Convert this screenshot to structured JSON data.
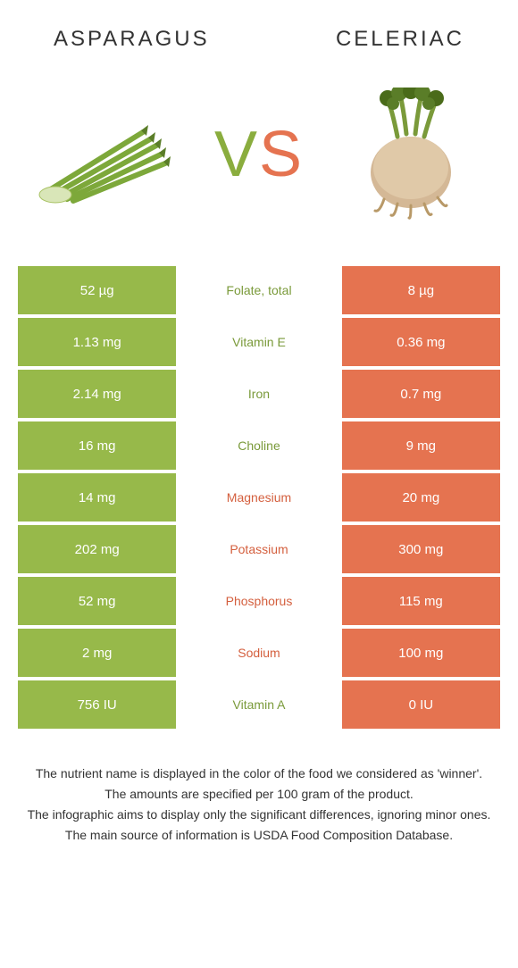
{
  "colors": {
    "left": "#97b94a",
    "right": "#e57350",
    "left_text": "#7a9a3a",
    "right_text": "#d45f3e",
    "white": "#ffffff"
  },
  "foods": {
    "left_name": "Asparagus",
    "right_name": "Celeriac"
  },
  "vs": {
    "v": "V",
    "s": "S"
  },
  "rows": [
    {
      "left": "52 µg",
      "label": "Folate, total",
      "right": "8 µg",
      "winner": "left"
    },
    {
      "left": "1.13 mg",
      "label": "Vitamin E",
      "right": "0.36 mg",
      "winner": "left"
    },
    {
      "left": "2.14 mg",
      "label": "Iron",
      "right": "0.7 mg",
      "winner": "left"
    },
    {
      "left": "16 mg",
      "label": "Choline",
      "right": "9 mg",
      "winner": "left"
    },
    {
      "left": "14 mg",
      "label": "Magnesium",
      "right": "20 mg",
      "winner": "right"
    },
    {
      "left": "202 mg",
      "label": "Potassium",
      "right": "300 mg",
      "winner": "right"
    },
    {
      "left": "52 mg",
      "label": "Phosphorus",
      "right": "115 mg",
      "winner": "right"
    },
    {
      "left": "2 mg",
      "label": "Sodium",
      "right": "100 mg",
      "winner": "right"
    },
    {
      "left": "756 IU",
      "label": "Vitamin A",
      "right": "0 IU",
      "winner": "left"
    }
  ],
  "footer": {
    "line1": "The nutrient name is displayed in the color of the food we considered as 'winner'.",
    "line2": "The amounts are specified per 100 gram of the product.",
    "line3": "The infographic aims to display only the significant differences, ignoring minor ones.",
    "line4": "The main source of information is USDA Food Composition Database."
  }
}
